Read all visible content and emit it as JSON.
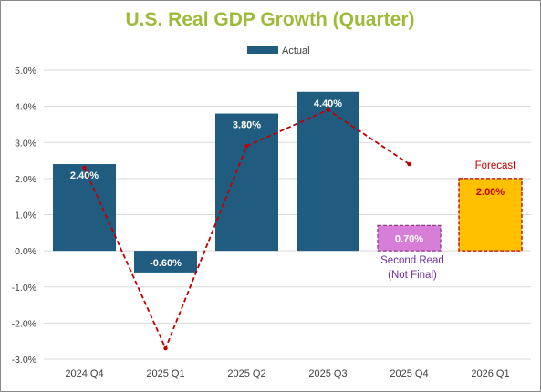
{
  "chart_data": {
    "type": "bar",
    "title": "U.S. Real GDP Growth (Quarter)",
    "legend": {
      "position": "top",
      "entries": [
        "Actual"
      ]
    },
    "categories": [
      "2024 Q4",
      "2025 Q1",
      "2025 Q2",
      "2025 Q3",
      "2025 Q4",
      "2026 Q1"
    ],
    "series": [
      {
        "name": "Actual",
        "values": [
          2.4,
          -0.6,
          3.8,
          4.4,
          0.7,
          2.0
        ],
        "labels": [
          "2.40%",
          "-0.60%",
          "3.80%",
          "4.40%",
          "0.70%",
          "2.00%"
        ],
        "styles": [
          "actual",
          "actual",
          "actual",
          "actual",
          "second-read",
          "forecast"
        ]
      }
    ],
    "trend_line": {
      "style": "dashed",
      "color": "#c00000",
      "values": [
        2.3,
        -2.7,
        2.9,
        3.9,
        2.4
      ]
    },
    "ylim": [
      -3,
      5
    ],
    "y_ticks": [
      "-3.0%",
      "-2.0%",
      "-1.0%",
      "0.0%",
      "1.0%",
      "2.0%",
      "3.0%",
      "4.0%",
      "5.0%"
    ],
    "y_tick_values": [
      -3,
      -2,
      -1,
      0,
      1,
      2,
      3,
      4,
      5
    ],
    "grid": true,
    "annotations": {
      "forecast": "Forecast",
      "second_read_line1": "Second Read",
      "second_read_line2": "(Not Final)"
    },
    "colors": {
      "actual": "#1f5c80",
      "second_read": "#d77fd8",
      "second_read_border": "#8e3a8e",
      "second_read_label": "#ffffff",
      "second_read_annotation": "#7030a0",
      "forecast": "#ffc000",
      "forecast_border": "#c00000",
      "forecast_label": "#c00000",
      "forecast_annotation": "#c00000",
      "actual_label": "#ffffff",
      "title": "#9dbb3a",
      "grid": "#d9d9d9"
    }
  }
}
